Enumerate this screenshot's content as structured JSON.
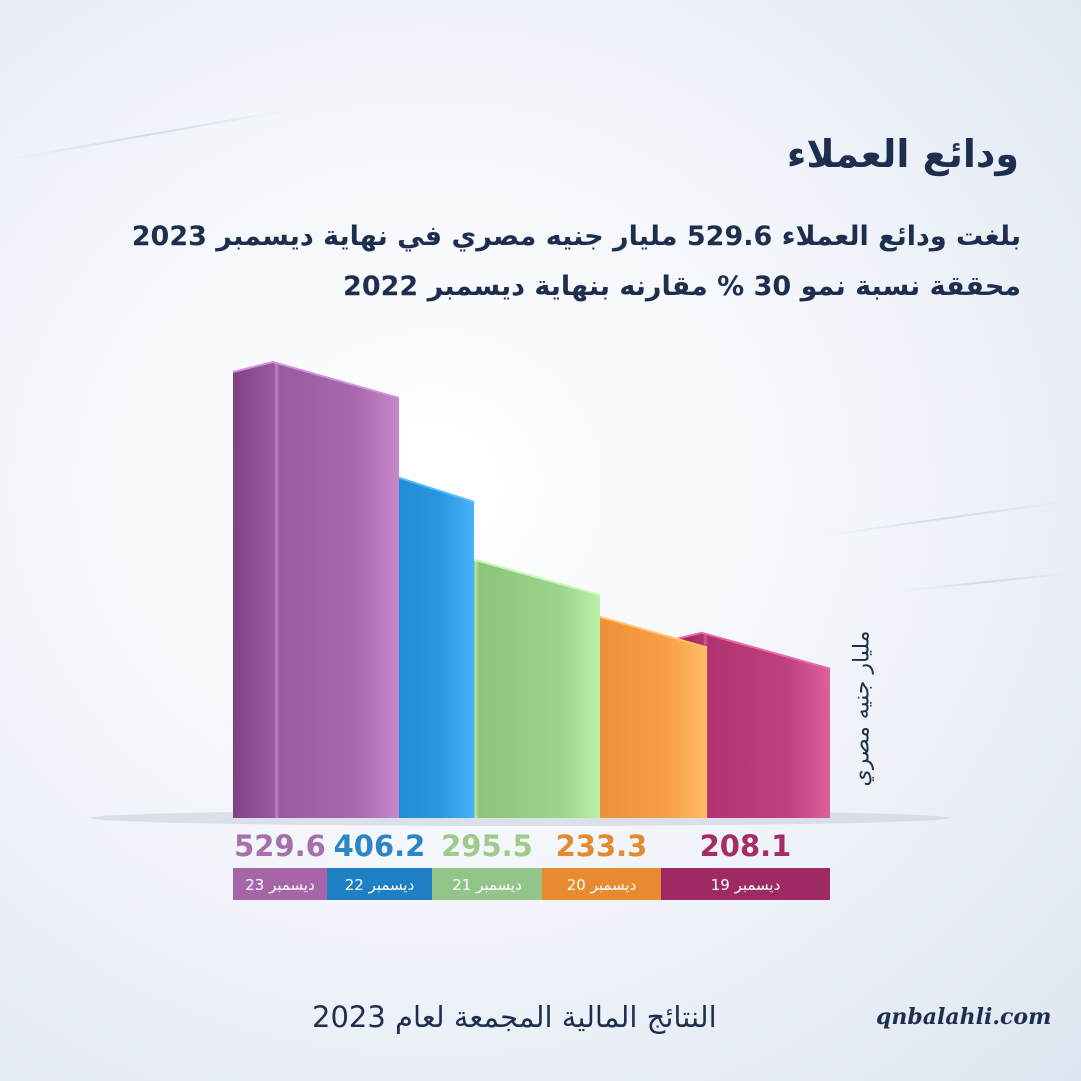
{
  "title": "ودائع العملاء",
  "subtitle": {
    "line1": "بلغت ودائع العملاء 529.6 مليار جنيه مصري في نهاية ديسمبر 2023",
    "line2": "محققة نسبة نمو 30 % مقارنه بنهاية ديسمبر 2022"
  },
  "unit_label": "مليار جنيه مصري",
  "footer": "النتائج المالية المجمعة لعام 2023",
  "website": "qnbalahli.com",
  "chart_data": {
    "type": "bar",
    "title": "ودائع العملاء",
    "ylabel": "مليار جنيه مصري",
    "categories": [
      "ديسمبر 23",
      "ديسمبر 22",
      "ديسمبر 21",
      "ديسمبر 20",
      "ديسمبر 19"
    ],
    "values": [
      529.6,
      406.2,
      295.5,
      233.3,
      208.1
    ],
    "value_labels": [
      "529.6",
      "406.2",
      "295.5",
      "233.3",
      "208.1"
    ],
    "colors": [
      "#9a5aa0",
      "#1a86cf",
      "#8cc47c",
      "#ea8f37",
      "#b0326f"
    ],
    "label_colors": [
      "#a770ac",
      "#2b86c6",
      "#9fcb8a",
      "#e38b2e",
      "#a52c66"
    ],
    "category_bg_colors": [
      "#a665a7",
      "#1e7fc5",
      "#93c58a",
      "#e88a30",
      "#9e2a63"
    ],
    "ylim": [
      0,
      529.6
    ],
    "grid": false,
    "legend": "none"
  }
}
